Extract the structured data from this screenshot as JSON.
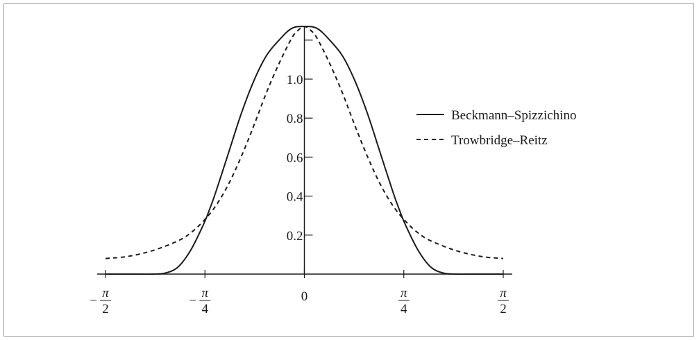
{
  "chart_data": {
    "type": "line",
    "title": "",
    "xlabel": "",
    "ylabel": "",
    "xlim": [
      -1.5708,
      1.5708
    ],
    "ylim": [
      0,
      1.28
    ],
    "grid": false,
    "legend_position": "right",
    "x_ticks": [
      {
        "value": -1.5708,
        "label": "−π/2",
        "sign": "−",
        "num": "π",
        "den": "2"
      },
      {
        "value": -0.7854,
        "label": "−π/4",
        "sign": "−",
        "num": "π",
        "den": "4"
      },
      {
        "value": 0,
        "label": "0",
        "sign": "",
        "num": "",
        "den": ""
      },
      {
        "value": 0.7854,
        "label": "π/4",
        "sign": "",
        "num": "π",
        "den": "4"
      },
      {
        "value": 1.5708,
        "label": "π/2",
        "sign": "",
        "num": "π",
        "den": "2"
      }
    ],
    "y_ticks": [
      {
        "value": 0.2,
        "label": "0.2"
      },
      {
        "value": 0.4,
        "label": "0.4"
      },
      {
        "value": 0.6,
        "label": "0.6"
      },
      {
        "value": 0.8,
        "label": "0.8"
      },
      {
        "value": 1.0,
        "label": "1.0"
      },
      {
        "value": 1.2,
        "label": ""
      }
    ],
    "series": [
      {
        "name": "Beckmann–Spizzichino",
        "style": "solid",
        "color": "#1a1a1a",
        "x": [
          -1.5708,
          -1.4,
          -1.2,
          -1.1,
          -1.0,
          -0.9,
          -0.8,
          -0.75,
          -0.7,
          -0.6,
          -0.5,
          -0.4,
          -0.3,
          -0.2,
          -0.1,
          0,
          0.1,
          0.2,
          0.3,
          0.4,
          0.5,
          0.6,
          0.7,
          0.75,
          0.8,
          0.9,
          1.0,
          1.1,
          1.2,
          1.4,
          1.5708
        ],
        "y": [
          0.0,
          0.0,
          0.0,
          0.005,
          0.035,
          0.12,
          0.25,
          0.33,
          0.42,
          0.62,
          0.82,
          0.99,
          1.12,
          1.2,
          1.26,
          1.27,
          1.26,
          1.2,
          1.12,
          0.99,
          0.82,
          0.62,
          0.42,
          0.33,
          0.25,
          0.12,
          0.035,
          0.005,
          0.0,
          0.0,
          0.0
        ]
      },
      {
        "name": "Trowbridge–Reitz",
        "style": "dashed",
        "color": "#1a1a1a",
        "x": [
          -1.5708,
          -1.4,
          -1.2,
          -1.0,
          -0.9,
          -0.8,
          -0.7,
          -0.6,
          -0.5,
          -0.4,
          -0.3,
          -0.2,
          -0.1,
          -0.05,
          0,
          0.05,
          0.1,
          0.2,
          0.3,
          0.4,
          0.5,
          0.6,
          0.7,
          0.8,
          0.9,
          1.0,
          1.2,
          1.4,
          1.5708
        ],
        "y": [
          0.08,
          0.09,
          0.12,
          0.17,
          0.21,
          0.27,
          0.35,
          0.46,
          0.6,
          0.76,
          0.93,
          1.08,
          1.21,
          1.25,
          1.27,
          1.25,
          1.21,
          1.08,
          0.93,
          0.76,
          0.6,
          0.46,
          0.35,
          0.27,
          0.21,
          0.17,
          0.12,
          0.09,
          0.08
        ]
      }
    ]
  }
}
